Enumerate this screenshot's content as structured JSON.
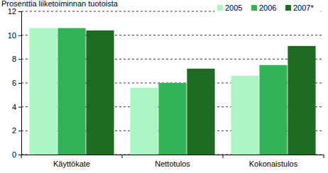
{
  "chart_data": {
    "type": "bar",
    "y_label": "Prosenttia liiketoiminnan tuotoista",
    "categories": [
      "Käyttökate",
      "Nettotulos",
      "Kokonaistulos"
    ],
    "series": [
      {
        "name": "2005",
        "color": "#aaf5c2",
        "values": [
          10.6,
          5.6,
          6.6
        ]
      },
      {
        "name": "2006",
        "color": "#33b358",
        "values": [
          10.6,
          6.0,
          7.5
        ]
      },
      {
        "name": "2007*",
        "color": "#1e6b22",
        "values": [
          10.4,
          7.2,
          9.1
        ]
      }
    ],
    "ylim": [
      0,
      12
    ],
    "yticks": [
      0,
      2,
      4,
      6,
      8,
      10,
      12
    ],
    "grid": true,
    "legend": "top-right"
  }
}
